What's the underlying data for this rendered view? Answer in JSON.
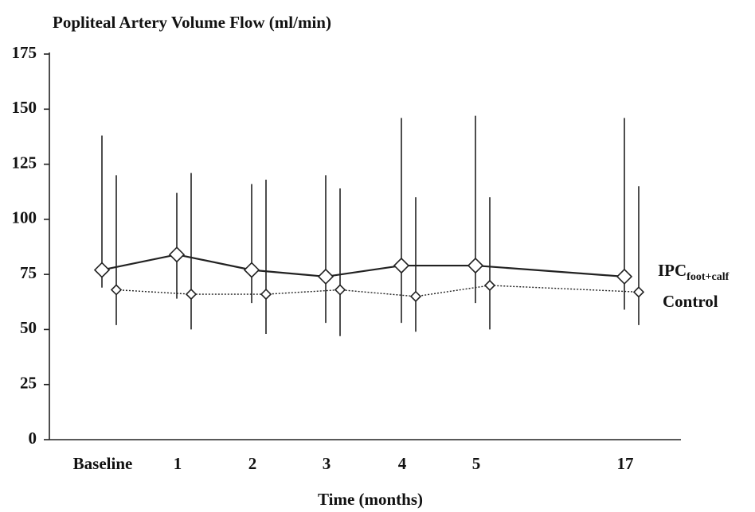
{
  "chart_data": {
    "type": "line",
    "title": "Popliteal Artery Volume Flow (ml/min)",
    "x_label": "Time (months)",
    "categories": [
      "Baseline",
      "1",
      "2",
      "3",
      "4",
      "5",
      "17"
    ],
    "ylim": [
      0,
      175
    ],
    "yticks": [
      0,
      25,
      50,
      75,
      100,
      125,
      150,
      175
    ],
    "grid": false,
    "series": [
      {
        "name": "IPC",
        "name_subscript": "foot+calf",
        "color": "#222222",
        "line_style": "solid",
        "values": [
          77,
          84,
          77,
          74,
          79,
          79,
          74
        ],
        "lower": [
          69,
          64,
          62,
          53,
          53,
          62,
          59
        ],
        "upper": [
          138,
          112,
          116,
          120,
          146,
          147,
          146
        ]
      },
      {
        "name": "Control",
        "color": "#222222",
        "line_style": "dotted",
        "values": [
          68,
          66,
          66,
          68,
          65,
          70,
          67
        ],
        "lower": [
          52,
          50,
          48,
          47,
          49,
          50,
          52
        ],
        "upper": [
          120,
          121,
          118,
          114,
          110,
          110,
          115
        ]
      }
    ]
  }
}
